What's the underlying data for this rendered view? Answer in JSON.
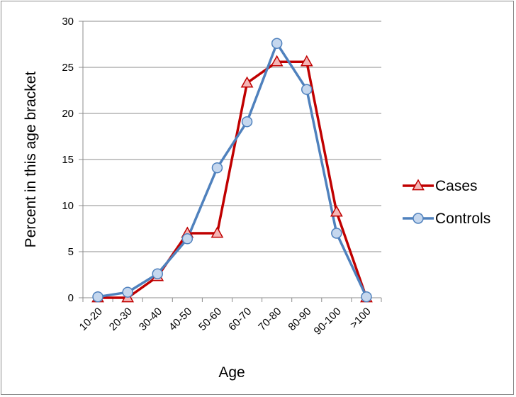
{
  "chart_data": {
    "type": "line",
    "title": "",
    "xlabel": "Age",
    "ylabel": "Percent in this age bracket",
    "categories": [
      "10-20",
      "20-30",
      "30-40",
      "40-50",
      "50-60",
      "60-70",
      "70-80",
      "80-90",
      "90-100",
      ">100"
    ],
    "ylim": [
      0,
      30
    ],
    "yticks": [
      0,
      5,
      10,
      15,
      20,
      25,
      30
    ],
    "grid": "horizontal",
    "legend_position": "right",
    "series": [
      {
        "name": "Cases",
        "marker": "triangle",
        "color": "#c00000",
        "marker_fill": "#f4b6b6",
        "values": [
          0,
          0,
          2.3,
          7.0,
          7.0,
          23.3,
          25.6,
          25.6,
          9.3,
          0
        ]
      },
      {
        "name": "Controls",
        "marker": "circle",
        "color": "#4f81bd",
        "marker_fill": "#c5d7ee",
        "values": [
          0.1,
          0.6,
          2.6,
          6.4,
          14.1,
          19.1,
          27.6,
          22.6,
          7.0,
          0.1
        ]
      }
    ]
  }
}
